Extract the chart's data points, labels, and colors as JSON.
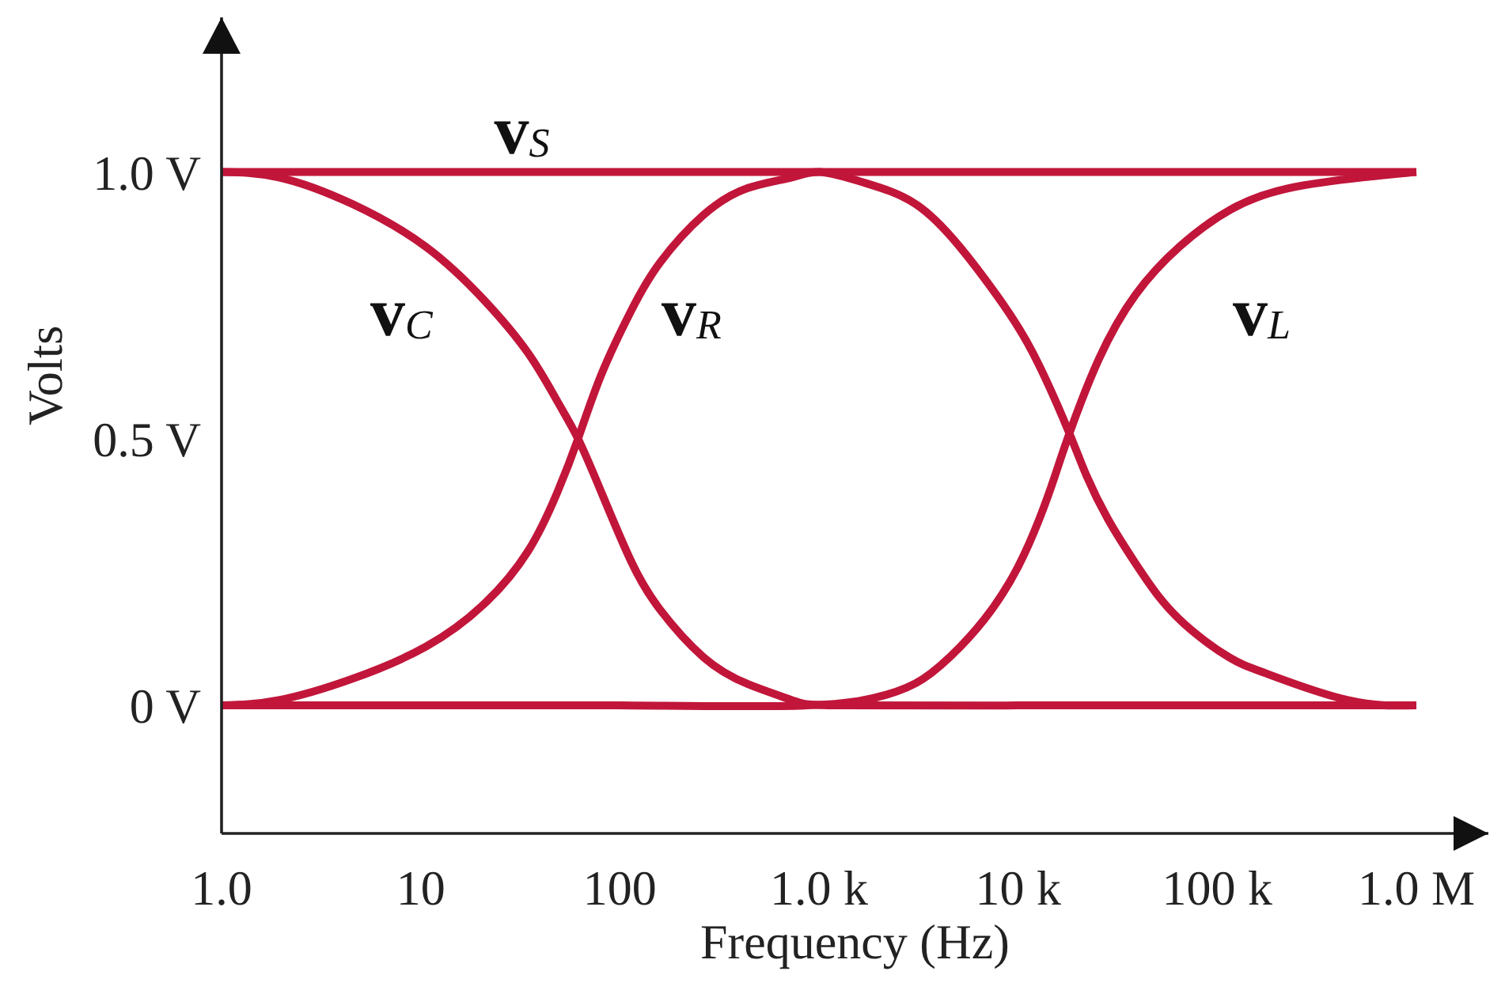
{
  "chart_data": {
    "type": "line",
    "xlabel": "Frequency (Hz)",
    "ylabel": "Volts",
    "log": "x",
    "marker": "none",
    "line_style": "solid",
    "xlim": [
      1,
      2300000
    ],
    "xticks": [
      {
        "value": 1,
        "label": "1.0"
      },
      10,
      100,
      {
        "value": 1000,
        "label": "1.0 k"
      },
      {
        "value": 10000,
        "label": "10 k"
      },
      {
        "value": 100000,
        "label": "100 k"
      },
      {
        "value": 1000000,
        "label": "1.0 M"
      }
    ],
    "ylim": [
      -0.24,
      1.29
    ],
    "yticks": [
      {
        "value": 0,
        "label": "0 V"
      },
      {
        "value": 0.5,
        "label": "0.5 V"
      },
      {
        "value": 1,
        "label": "1.0 V"
      }
    ],
    "series": [
      {
        "name": "v$_{S}$",
        "color": "#c1163a",
        "x": [
          1,
          1000000
        ],
        "values": [
          1,
          1
        ]
      },
      {
        "name": "v$_{C}$",
        "color": "#c1163a",
        "x": [
          1,
          1.94,
          4.54,
          10.6,
          20.8,
          34.7,
          48.6,
          61.7,
          80.7,
          114,
          159,
          264,
          440,
          731,
          1260,
          10000,
          100000,
          1000000
        ],
        "values": [
          1,
          0.99,
          0.94,
          0.86,
          0.76,
          0.66,
          0.57,
          0.5,
          0.4,
          0.27,
          0.18,
          0.09,
          0.04,
          0.01,
          0,
          0,
          0,
          0
        ]
      },
      {
        "name": "v$_{R}$",
        "color": "#c1163a",
        "x": [
          1,
          1.94,
          4.54,
          10.6,
          20.8,
          34.7,
          48.6,
          61.7,
          80.7,
          114,
          159,
          264,
          440,
          731,
          1020,
          1690,
          3060,
          5090,
          7780,
          11900,
          18100,
          22100,
          28200,
          38300,
          51900,
          74800,
          115000,
          176000,
          453000,
          1000000
        ],
        "values": [
          0,
          0.01,
          0.05,
          0.11,
          0.19,
          0.29,
          0.4,
          0.5,
          0.62,
          0.74,
          0.83,
          0.92,
          0.97,
          0.99,
          1,
          0.98,
          0.94,
          0.86,
          0.77,
          0.66,
          0.51,
          0.43,
          0.35,
          0.27,
          0.2,
          0.14,
          0.09,
          0.06,
          0.01,
          0
        ]
      },
      {
        "name": "v$_{L}$",
        "color": "#c1163a",
        "x": [
          1,
          10,
          100,
          871,
          2180,
          3340,
          5120,
          7380,
          10000,
          12800,
          15300,
          18100,
          25500,
          38900,
          64600,
          117000,
          230000,
          537000,
          1000000
        ],
        "values": [
          0,
          0,
          0,
          0,
          0.02,
          0.05,
          0.11,
          0.18,
          0.26,
          0.35,
          0.43,
          0.51,
          0.65,
          0.77,
          0.86,
          0.93,
          0.97,
          0.99,
          1
        ]
      }
    ]
  }
}
